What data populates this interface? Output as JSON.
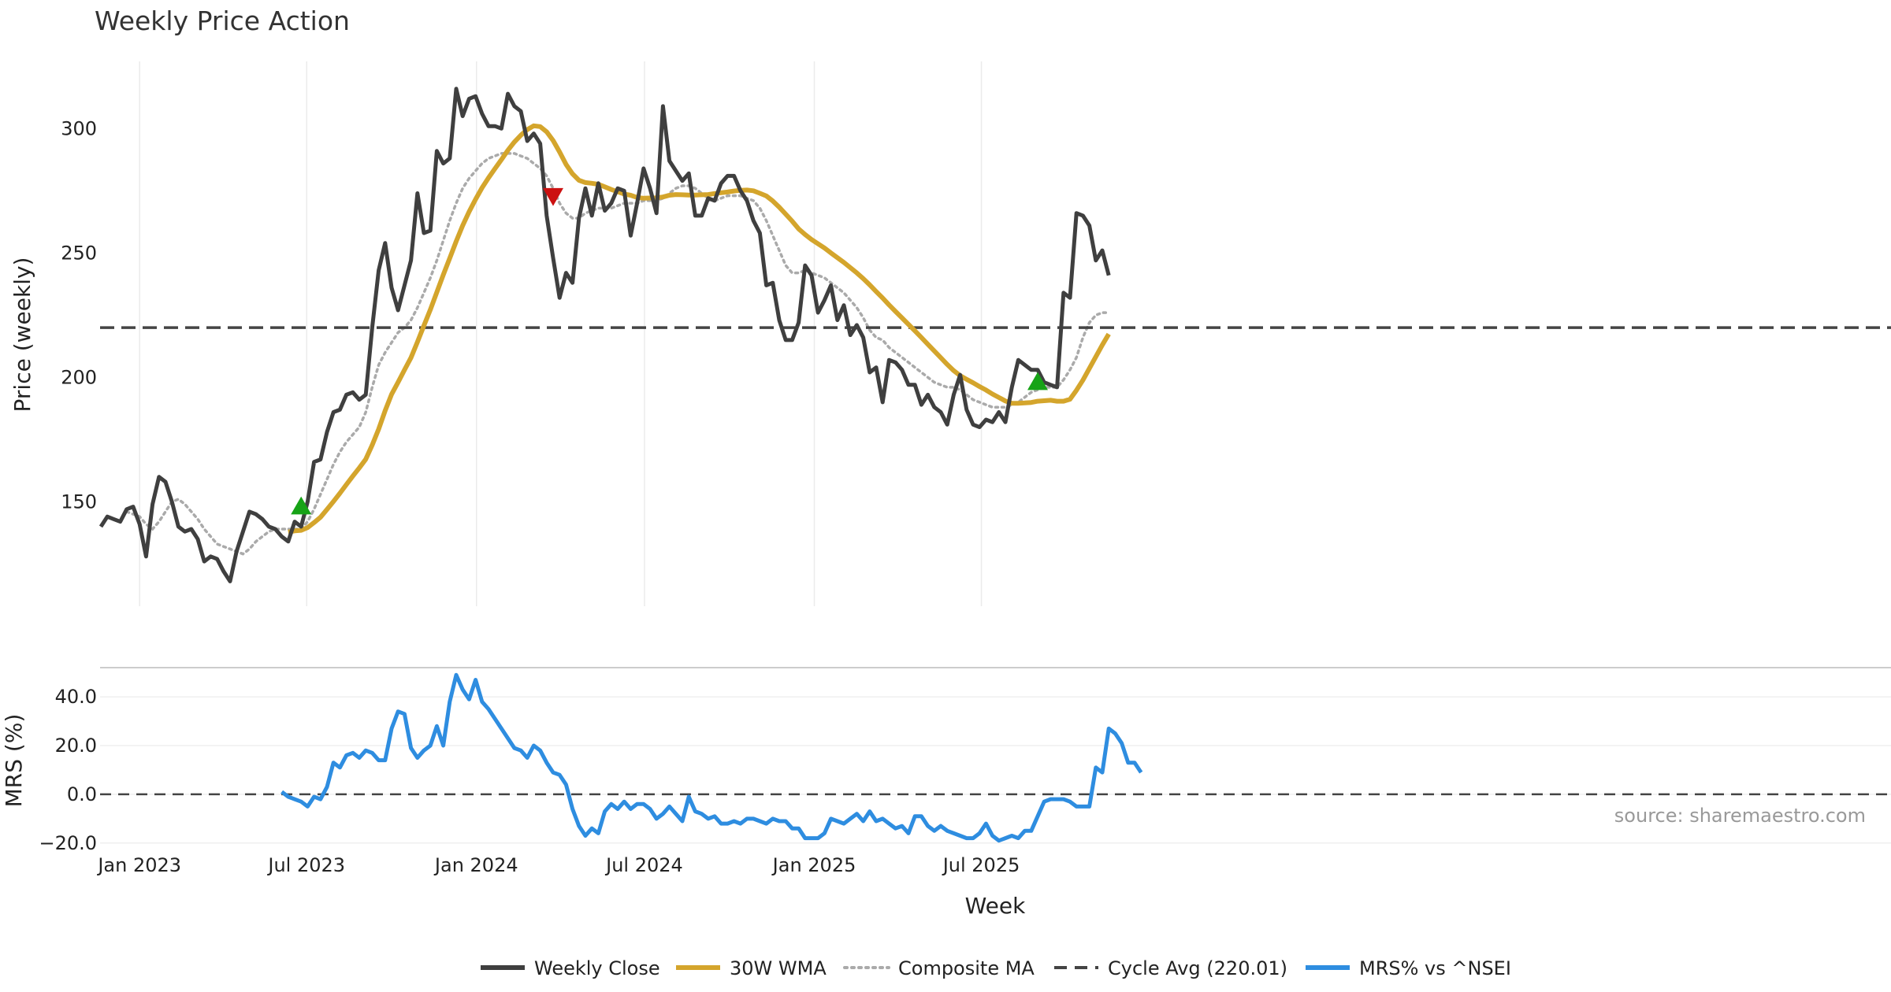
{
  "chart_data": [
    {
      "type": "line",
      "title": "Weekly Price Action",
      "xlabel": "",
      "ylabel": "Price (weekly)",
      "ylim": [
        108,
        327
      ],
      "yticks": [
        150,
        200,
        250,
        300
      ],
      "grid": "vertical",
      "x_start": "2022-11-20",
      "x_step_days": 7,
      "series": [
        {
          "name": "Weekly Close",
          "color": "#3f3f3f",
          "values": [
            140,
            144,
            143,
            142,
            147,
            148,
            141,
            128,
            149,
            160,
            158,
            150,
            140,
            138,
            139,
            135,
            126,
            128,
            127,
            122,
            118,
            130,
            138,
            146,
            145,
            143,
            140,
            139,
            136,
            134,
            142,
            140,
            150,
            166,
            167,
            178,
            186,
            187,
            193,
            194,
            191,
            193,
            220,
            243,
            254,
            236,
            227,
            237,
            247,
            274,
            258,
            259,
            291,
            286,
            288,
            316,
            305,
            312,
            313,
            306,
            301,
            301,
            300,
            314,
            309,
            307,
            295,
            298,
            294,
            265,
            248,
            232,
            242,
            238,
            264,
            276,
            265,
            278,
            267,
            270,
            276,
            275,
            257,
            270,
            284,
            276,
            266,
            309,
            287,
            283,
            279,
            282,
            265,
            265,
            272,
            271,
            278,
            281,
            281,
            275,
            271,
            263,
            258,
            237,
            238,
            223,
            215,
            215,
            222,
            245,
            241,
            226,
            231,
            237,
            223,
            229,
            217,
            221,
            216,
            202,
            204,
            190,
            207,
            206,
            203,
            197,
            197,
            189,
            193,
            188,
            186,
            181,
            193,
            201,
            187,
            181,
            180,
            183,
            182,
            186,
            182,
            196,
            207,
            205,
            203,
            203,
            198,
            197,
            196,
            234,
            232,
            266,
            265,
            261,
            247,
            251,
            241
          ]
        },
        {
          "name": "30W WMA",
          "color": "#d4a52c",
          "values": [
            null,
            null,
            null,
            null,
            null,
            null,
            null,
            null,
            null,
            null,
            null,
            null,
            null,
            null,
            null,
            null,
            null,
            null,
            null,
            null,
            null,
            null,
            null,
            null,
            null,
            null,
            null,
            null,
            null,
            137.8,
            138.3,
            138.5,
            139.6,
            141.6,
            143.8,
            146.9,
            150.1,
            153.4,
            156.9,
            160.3,
            163.6,
            167.1,
            172.8,
            179.2,
            186.6,
            193.2,
            198.0,
            203.0,
            207.9,
            214.2,
            220.8,
            227.2,
            234.2,
            241.2,
            247.9,
            254.7,
            261.0,
            266.6,
            271.6,
            276.2,
            280.2,
            283.9,
            287.5,
            291.3,
            294.6,
            297.3,
            299.6,
            301.1,
            300.8,
            298.7,
            295.2,
            290.6,
            285.6,
            281.8,
            279.2,
            278.3,
            278.0,
            277.6,
            276.6,
            275.5,
            274.6,
            273.7,
            273.2,
            272.3,
            272.0,
            272.1,
            272.2,
            272.5,
            273.2,
            273.5,
            273.4,
            273.3,
            273.3,
            273.4,
            273.5,
            273.9,
            274.2,
            274.5,
            274.9,
            275.2,
            275.3,
            275.0,
            274.0,
            272.9,
            270.9,
            268.4,
            265.6,
            262.8,
            259.7,
            257.4,
            255.4,
            253.7,
            252.0,
            250.0,
            248.1,
            246.2,
            244.1,
            242.0,
            239.7,
            237.2,
            234.5,
            231.9,
            229.1,
            226.5,
            223.9,
            221.3,
            218.7,
            216.0,
            213.3,
            210.6,
            207.9,
            205.2,
            202.7,
            200.7,
            199.2,
            197.8,
            196.3,
            194.9,
            193.3,
            191.9,
            190.5,
            189.6,
            189.6,
            189.7,
            189.9,
            190.4,
            190.6,
            190.8,
            190.4,
            190.4,
            191.2,
            194.8,
            198.9,
            203.6,
            208.3,
            213.0,
            217.4
          ]
        },
        {
          "name": "Composite MA",
          "color": "#aaaaaa",
          "values": [
            null,
            null,
            null,
            null,
            146,
            145,
            144,
            141,
            139,
            142,
            146,
            150,
            151,
            149,
            146,
            143,
            139,
            136,
            133,
            132,
            131,
            130,
            129,
            131,
            134,
            136,
            138,
            139,
            139,
            139,
            139,
            139,
            142,
            147,
            153,
            159,
            165,
            170,
            174,
            177,
            180,
            186,
            196,
            205,
            210,
            214,
            218,
            220,
            223,
            228,
            234,
            240,
            247,
            255,
            263,
            270,
            276,
            280,
            283,
            286,
            288,
            289,
            290,
            290,
            290,
            289,
            288,
            286,
            284,
            281,
            276,
            270,
            266,
            264,
            264,
            266,
            267,
            268,
            268,
            268,
            269,
            270,
            270,
            270,
            271,
            271,
            271,
            272,
            274,
            276,
            277,
            277,
            276,
            274,
            272,
            271,
            272,
            273,
            273,
            273,
            272,
            271,
            268,
            263,
            257,
            251,
            245,
            242,
            242,
            243,
            242,
            241,
            240,
            238,
            236,
            234,
            231,
            228,
            224,
            219,
            216,
            215,
            212,
            210,
            208,
            206,
            204,
            202,
            200,
            198,
            197,
            196,
            196,
            195,
            193,
            191,
            190,
            189,
            188,
            188,
            188,
            189,
            190,
            192,
            194,
            195,
            196,
            196,
            196,
            199,
            203,
            208,
            216,
            222,
            225,
            226,
            226
          ]
        },
        {
          "name": "Cycle Avg (220.01)",
          "color": "#444444",
          "constant": 220.01
        }
      ],
      "markers": [
        {
          "type": "buy",
          "shape": "triangle-up",
          "color": "#17a317",
          "x": "2023-06-25",
          "y": 148
        },
        {
          "type": "sell",
          "shape": "triangle-down",
          "color": "#cc1111",
          "x": "2024-03-24",
          "y": 273
        },
        {
          "type": "buy",
          "shape": "triangle-up",
          "color": "#17a317",
          "x": "2025-08-31",
          "y": 198
        }
      ]
    },
    {
      "type": "line",
      "xlabel": "Week",
      "ylabel": "MRS (%)",
      "ylim": [
        -22,
        52
      ],
      "yticks": [
        "40.0",
        "20.0",
        "0.0",
        "−20.0"
      ],
      "ytick_values": [
        40,
        20,
        0,
        -20
      ],
      "reference_line": 0,
      "x_ticks": [
        {
          "label": "Jan 2023",
          "date": "2023-01-01"
        },
        {
          "label": "Jul 2023",
          "date": "2023-07-01"
        },
        {
          "label": "Jan 2024",
          "date": "2024-01-01"
        },
        {
          "label": "Jul 2024",
          "date": "2024-07-01"
        },
        {
          "label": "Jan 2025",
          "date": "2025-01-01"
        },
        {
          "label": "Jul 2025",
          "date": "2025-07-01"
        }
      ],
      "series": [
        {
          "name": "MRS% vs ^NSEI",
          "color": "#2e8de0",
          "values": [
            null,
            null,
            null,
            null,
            null,
            null,
            null,
            null,
            null,
            null,
            null,
            null,
            null,
            null,
            null,
            null,
            null,
            null,
            null,
            null,
            null,
            null,
            null,
            null,
            null,
            null,
            null,
            null,
            1,
            -1,
            -2,
            -3,
            -5,
            -1,
            -2,
            3,
            13,
            11,
            16,
            17,
            15,
            18,
            17,
            14,
            14,
            27,
            34,
            33,
            19,
            15,
            18,
            20,
            28,
            20,
            38,
            49,
            43,
            39,
            47,
            38,
            35,
            31,
            27,
            23,
            19,
            18,
            15,
            20,
            18,
            13,
            9,
            8,
            4,
            -6,
            -13,
            -17,
            -14,
            -16,
            -7,
            -4,
            -6,
            -3,
            -6,
            -4,
            -4,
            -6,
            -10,
            -8,
            -5,
            -8,
            -11,
            -1,
            -7,
            -8,
            -10,
            -9,
            -12,
            -12,
            -11,
            -12,
            -10,
            -10,
            -11,
            -12,
            -10,
            -11,
            -11,
            -14,
            -14,
            -18,
            -18,
            -18,
            -16,
            -10,
            -11,
            -12,
            -10,
            -8,
            -11,
            -7,
            -11,
            -10,
            -12,
            -14,
            -13,
            -16,
            -9,
            -9,
            -13,
            -15,
            -13,
            -15,
            -16,
            -17,
            -18,
            -18,
            -16,
            -12,
            -17,
            -19,
            -18,
            -17,
            -18,
            -15,
            -15,
            -9,
            -3,
            -2,
            -2,
            -2,
            -3,
            -5,
            -5,
            -5,
            11,
            9,
            27,
            25,
            21,
            13,
            13,
            9
          ]
        }
      ]
    }
  ],
  "source": "source: sharemaestro.com",
  "legend": {
    "placement": "bottom-center",
    "items": [
      {
        "label": "Weekly Close",
        "style": "solid",
        "color": "#3f3f3f"
      },
      {
        "label": "30W WMA",
        "style": "solid",
        "color": "#d4a52c"
      },
      {
        "label": "Composite MA",
        "style": "dotted",
        "color": "#aaaaaa"
      },
      {
        "label": "Cycle Avg (220.01)",
        "style": "dashed",
        "color": "#444444"
      },
      {
        "label": "MRS% vs ^NSEI",
        "style": "solid",
        "color": "#2e8de0"
      }
    ]
  }
}
